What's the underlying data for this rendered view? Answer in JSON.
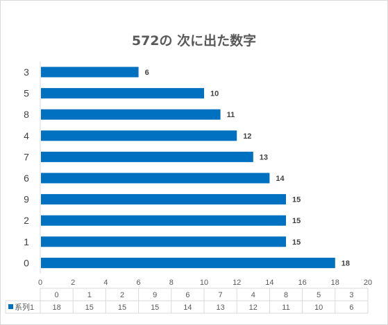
{
  "chart_data": {
    "type": "bar",
    "orientation": "horizontal",
    "title": "572の 次に出た数字",
    "categories": [
      "3",
      "5",
      "8",
      "4",
      "7",
      "6",
      "9",
      "2",
      "1",
      "0"
    ],
    "series": [
      {
        "name": "系列1",
        "values": [
          6,
          10,
          11,
          12,
          13,
          14,
          15,
          15,
          15,
          18
        ]
      }
    ],
    "xlim": [
      0,
      20
    ],
    "x_ticks": [
      0,
      2,
      4,
      6,
      8,
      10,
      12,
      14,
      16,
      18,
      20
    ],
    "grid": false,
    "data_table": true,
    "data_table_columns": [
      "0",
      "1",
      "2",
      "9",
      "6",
      "7",
      "4",
      "8",
      "5",
      "3"
    ],
    "data_table_values": [
      18,
      15,
      15,
      15,
      14,
      13,
      12,
      11,
      10,
      6
    ],
    "bar_color": "#0070c0"
  }
}
